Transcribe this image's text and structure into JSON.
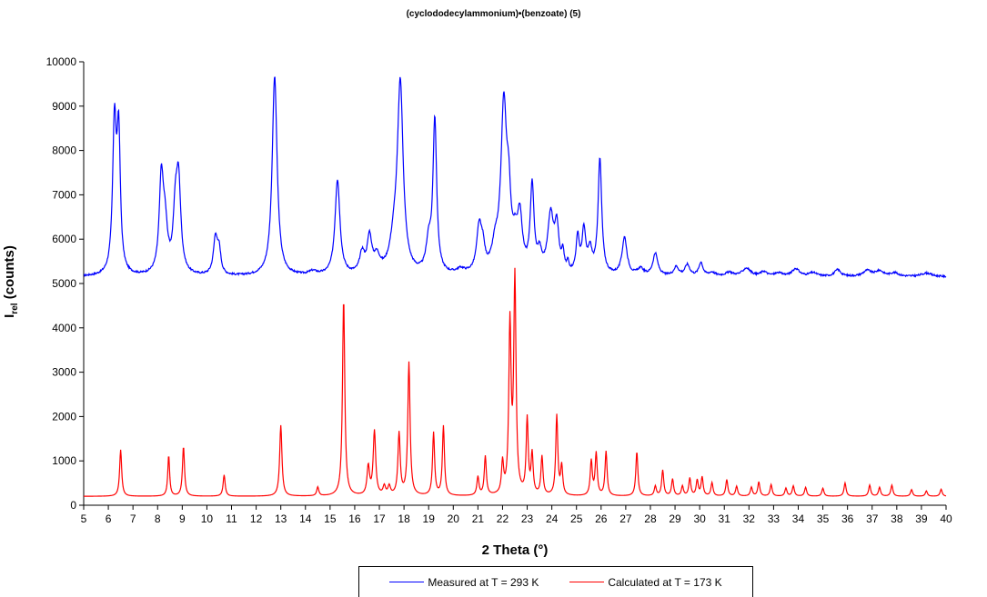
{
  "chart_data": {
    "type": "line",
    "title": "(cyclododecylammonium)•(benzoate) (5)",
    "xlabel": "2 Theta (°)",
    "ylabel_main": "I",
    "ylabel_sub": "rel",
    "ylabel_unit": " (counts)",
    "xlim": [
      5,
      40
    ],
    "ylim": [
      0,
      10000
    ],
    "xticks": [
      5,
      6,
      7,
      8,
      9,
      10,
      11,
      12,
      13,
      14,
      15,
      16,
      17,
      18,
      19,
      20,
      21,
      22,
      23,
      24,
      25,
      26,
      27,
      28,
      29,
      30,
      31,
      32,
      33,
      34,
      35,
      36,
      37,
      38,
      39,
      40
    ],
    "yticks": [
      0,
      1000,
      2000,
      3000,
      4000,
      5000,
      6000,
      7000,
      8000,
      9000,
      10000
    ],
    "grid": false,
    "legend_position": "bottom",
    "series": [
      {
        "name": "Measured at T = 293 K",
        "color": "#0000ff",
        "baseline": 5150,
        "noise": 20,
        "peaks": [
          [
            6.25,
            3350,
            0.09
          ],
          [
            6.42,
            3000,
            0.08
          ],
          [
            8.15,
            2050,
            0.1
          ],
          [
            8.3,
            1000,
            0.12
          ],
          [
            8.85,
            2000,
            0.11
          ],
          [
            8.72,
            1200,
            0.1
          ],
          [
            10.35,
            850,
            0.1
          ],
          [
            10.5,
            500,
            0.08
          ],
          [
            12.75,
            4500,
            0.12
          ],
          [
            14.3,
            80,
            0.2
          ],
          [
            15.3,
            2150,
            0.12
          ],
          [
            16.3,
            450,
            0.12
          ],
          [
            16.6,
            800,
            0.11
          ],
          [
            16.9,
            350,
            0.15
          ],
          [
            17.6,
            600,
            0.2
          ],
          [
            17.85,
            4200,
            0.14
          ],
          [
            19.0,
            650,
            0.12
          ],
          [
            19.25,
            3450,
            0.09
          ],
          [
            20.3,
            100,
            0.2
          ],
          [
            21.05,
            1000,
            0.12
          ],
          [
            21.2,
            450,
            0.1
          ],
          [
            21.7,
            500,
            0.15
          ],
          [
            22.05,
            3700,
            0.14
          ],
          [
            22.25,
            1300,
            0.1
          ],
          [
            22.7,
            1200,
            0.12
          ],
          [
            22.5,
            500,
            0.12
          ],
          [
            23.2,
            1950,
            0.09
          ],
          [
            23.5,
            400,
            0.1
          ],
          [
            23.95,
            1300,
            0.14
          ],
          [
            24.2,
            1000,
            0.1
          ],
          [
            24.45,
            400,
            0.06
          ],
          [
            24.65,
            200,
            0.05
          ],
          [
            25.05,
            800,
            0.08
          ],
          [
            25.3,
            950,
            0.09
          ],
          [
            25.55,
            500,
            0.1
          ],
          [
            25.95,
            2600,
            0.09
          ],
          [
            26.95,
            850,
            0.12
          ],
          [
            27.6,
            150,
            0.15
          ],
          [
            28.2,
            500,
            0.12
          ],
          [
            29.05,
            200,
            0.12
          ],
          [
            29.5,
            250,
            0.12
          ],
          [
            30.05,
            300,
            0.1
          ],
          [
            30.5,
            80,
            0.15
          ],
          [
            31.2,
            80,
            0.2
          ],
          [
            31.9,
            180,
            0.2
          ],
          [
            32.6,
            100,
            0.15
          ],
          [
            33.2,
            70,
            0.2
          ],
          [
            33.9,
            170,
            0.18
          ],
          [
            34.6,
            80,
            0.2
          ],
          [
            35.6,
            150,
            0.15
          ],
          [
            36.8,
            130,
            0.2
          ],
          [
            37.3,
            120,
            0.2
          ],
          [
            37.9,
            80,
            0.2
          ],
          [
            39.2,
            80,
            0.25
          ]
        ]
      },
      {
        "name": "Calculated at T = 173 K",
        "color": "#ff0000",
        "baseline": 200,
        "noise": 0,
        "peaks": [
          [
            6.5,
            1050,
            0.05
          ],
          [
            8.45,
            920,
            0.045
          ],
          [
            9.05,
            1120,
            0.05
          ],
          [
            10.7,
            480,
            0.05
          ],
          [
            13.0,
            1600,
            0.055
          ],
          [
            14.5,
            200,
            0.05
          ],
          [
            15.55,
            4450,
            0.055
          ],
          [
            16.55,
            650,
            0.06
          ],
          [
            16.8,
            1450,
            0.06
          ],
          [
            17.2,
            200,
            0.06
          ],
          [
            17.4,
            200,
            0.06
          ],
          [
            17.8,
            1400,
            0.055
          ],
          [
            18.2,
            3000,
            0.055
          ],
          [
            19.2,
            1420,
            0.05
          ],
          [
            19.6,
            1570,
            0.05
          ],
          [
            21.0,
            420,
            0.05
          ],
          [
            21.3,
            880,
            0.05
          ],
          [
            22.0,
            700,
            0.05
          ],
          [
            22.3,
            3800,
            0.055
          ],
          [
            22.5,
            4850,
            0.055
          ],
          [
            23.0,
            1700,
            0.05
          ],
          [
            23.2,
            900,
            0.05
          ],
          [
            23.6,
            870,
            0.05
          ],
          [
            24.2,
            1800,
            0.05
          ],
          [
            24.4,
            650,
            0.05
          ],
          [
            25.6,
            780,
            0.05
          ],
          [
            25.8,
            950,
            0.05
          ],
          [
            26.2,
            1000,
            0.05
          ],
          [
            27.45,
            1000,
            0.05
          ],
          [
            28.2,
            220,
            0.05
          ],
          [
            28.5,
            580,
            0.05
          ],
          [
            28.9,
            380,
            0.05
          ],
          [
            29.3,
            220,
            0.05
          ],
          [
            29.6,
            400,
            0.05
          ],
          [
            29.9,
            350,
            0.05
          ],
          [
            30.1,
            420,
            0.05
          ],
          [
            30.5,
            300,
            0.05
          ],
          [
            31.1,
            370,
            0.05
          ],
          [
            31.5,
            220,
            0.05
          ],
          [
            32.1,
            200,
            0.05
          ],
          [
            32.4,
            320,
            0.05
          ],
          [
            32.9,
            260,
            0.05
          ],
          [
            33.5,
            180,
            0.05
          ],
          [
            33.8,
            230,
            0.05
          ],
          [
            34.3,
            200,
            0.05
          ],
          [
            35.0,
            180,
            0.05
          ],
          [
            35.9,
            300,
            0.05
          ],
          [
            36.9,
            250,
            0.05
          ],
          [
            37.3,
            200,
            0.05
          ],
          [
            37.8,
            250,
            0.05
          ],
          [
            38.6,
            150,
            0.05
          ],
          [
            39.2,
            120,
            0.05
          ],
          [
            39.8,
            160,
            0.05
          ]
        ]
      }
    ]
  }
}
